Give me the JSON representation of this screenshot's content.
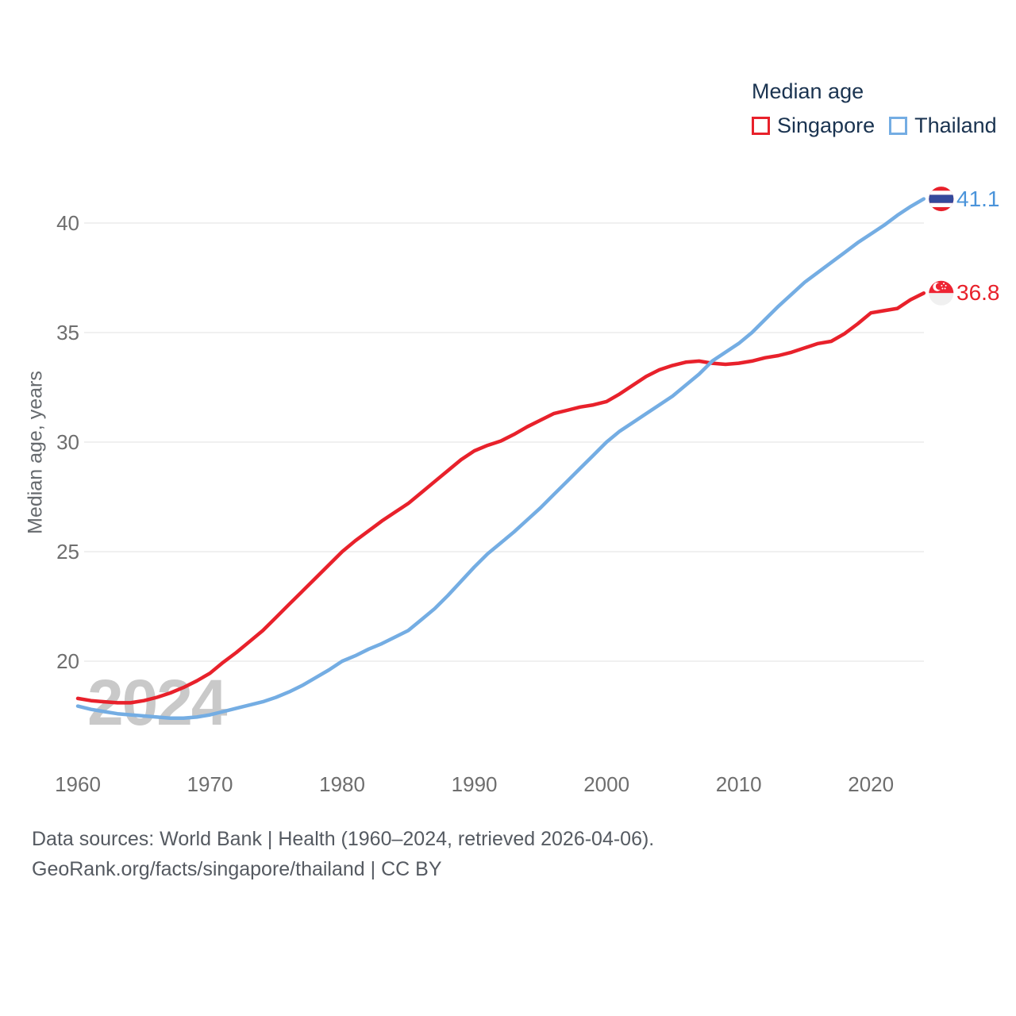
{
  "legend": {
    "title": "Median age",
    "items": [
      {
        "label": "Singapore",
        "color": "#e8212b"
      },
      {
        "label": "Thailand",
        "color": "#74ade3"
      }
    ]
  },
  "y_axis": {
    "title": "Median age, years",
    "ticks": [
      "40",
      "35",
      "30",
      "25",
      "20"
    ]
  },
  "x_axis": {
    "ticks": [
      "1960",
      "1970",
      "1980",
      "1990",
      "2000",
      "2010",
      "2020"
    ]
  },
  "end_labels": [
    {
      "series": "Thailand",
      "value": "41.1",
      "color": "#4b94da",
      "icon": "thailand-flag"
    },
    {
      "series": "Singapore",
      "value": "36.8",
      "color": "#e8212b",
      "icon": "singapore-flag"
    }
  ],
  "watermark": "2024",
  "footer": {
    "line1": "Data sources: World Bank | Health (1960–2024, retrieved 2026-04-06).",
    "line2": "GeoRank.org/facts/singapore/thailand | CC BY"
  },
  "chart_data": {
    "type": "line",
    "title": "Median age",
    "xlabel": "",
    "ylabel": "Median age, years",
    "x": [
      1960,
      1961,
      1962,
      1963,
      1964,
      1965,
      1966,
      1967,
      1968,
      1969,
      1970,
      1971,
      1972,
      1973,
      1974,
      1975,
      1976,
      1977,
      1978,
      1979,
      1980,
      1981,
      1982,
      1983,
      1984,
      1985,
      1986,
      1987,
      1988,
      1989,
      1990,
      1991,
      1992,
      1993,
      1994,
      1995,
      1996,
      1997,
      1998,
      1999,
      2000,
      2001,
      2002,
      2003,
      2004,
      2005,
      2006,
      2007,
      2008,
      2009,
      2010,
      2011,
      2012,
      2013,
      2014,
      2015,
      2016,
      2017,
      2018,
      2019,
      2020,
      2021,
      2022,
      2023,
      2024
    ],
    "series": [
      {
        "name": "Singapore",
        "color": "#e8212b",
        "values": [
          18.3,
          18.2,
          18.15,
          18.1,
          18.1,
          18.2,
          18.35,
          18.55,
          18.8,
          19.1,
          19.45,
          19.95,
          20.4,
          20.9,
          21.4,
          22.0,
          22.6,
          23.2,
          23.8,
          24.4,
          25.0,
          25.5,
          25.95,
          26.4,
          26.8,
          27.2,
          27.7,
          28.2,
          28.7,
          29.2,
          29.6,
          29.85,
          30.05,
          30.35,
          30.7,
          31.0,
          31.3,
          31.45,
          31.6,
          31.7,
          31.85,
          32.2,
          32.6,
          33.0,
          33.3,
          33.5,
          33.65,
          33.7,
          33.6,
          33.55,
          33.6,
          33.7,
          33.85,
          33.95,
          34.1,
          34.3,
          34.5,
          34.6,
          34.95,
          35.4,
          35.9,
          36.0,
          36.1,
          36.5,
          36.8
        ]
      },
      {
        "name": "Thailand",
        "color": "#74ade3",
        "values": [
          17.95,
          17.8,
          17.7,
          17.6,
          17.55,
          17.5,
          17.45,
          17.4,
          17.4,
          17.45,
          17.55,
          17.7,
          17.85,
          18.0,
          18.15,
          18.35,
          18.6,
          18.9,
          19.25,
          19.6,
          20.0,
          20.25,
          20.55,
          20.8,
          21.1,
          21.4,
          21.9,
          22.4,
          23.0,
          23.65,
          24.3,
          24.9,
          25.4,
          25.9,
          26.45,
          27.0,
          27.6,
          28.2,
          28.8,
          29.4,
          30.0,
          30.5,
          30.9,
          31.3,
          31.7,
          32.1,
          32.6,
          33.1,
          33.7,
          34.1,
          34.5,
          35.0,
          35.6,
          36.2,
          36.75,
          37.3,
          37.75,
          38.2,
          38.65,
          39.1,
          39.5,
          39.9,
          40.35,
          40.75,
          41.1
        ]
      }
    ],
    "xlim": [
      1960,
      2024
    ],
    "ylim": [
      17,
      42
    ],
    "y_ticks": [
      40,
      35,
      30,
      25,
      20
    ],
    "x_ticks": [
      1960,
      1970,
      1980,
      1990,
      2000,
      2010,
      2020
    ],
    "grid": true,
    "legend_position": "top-right"
  }
}
